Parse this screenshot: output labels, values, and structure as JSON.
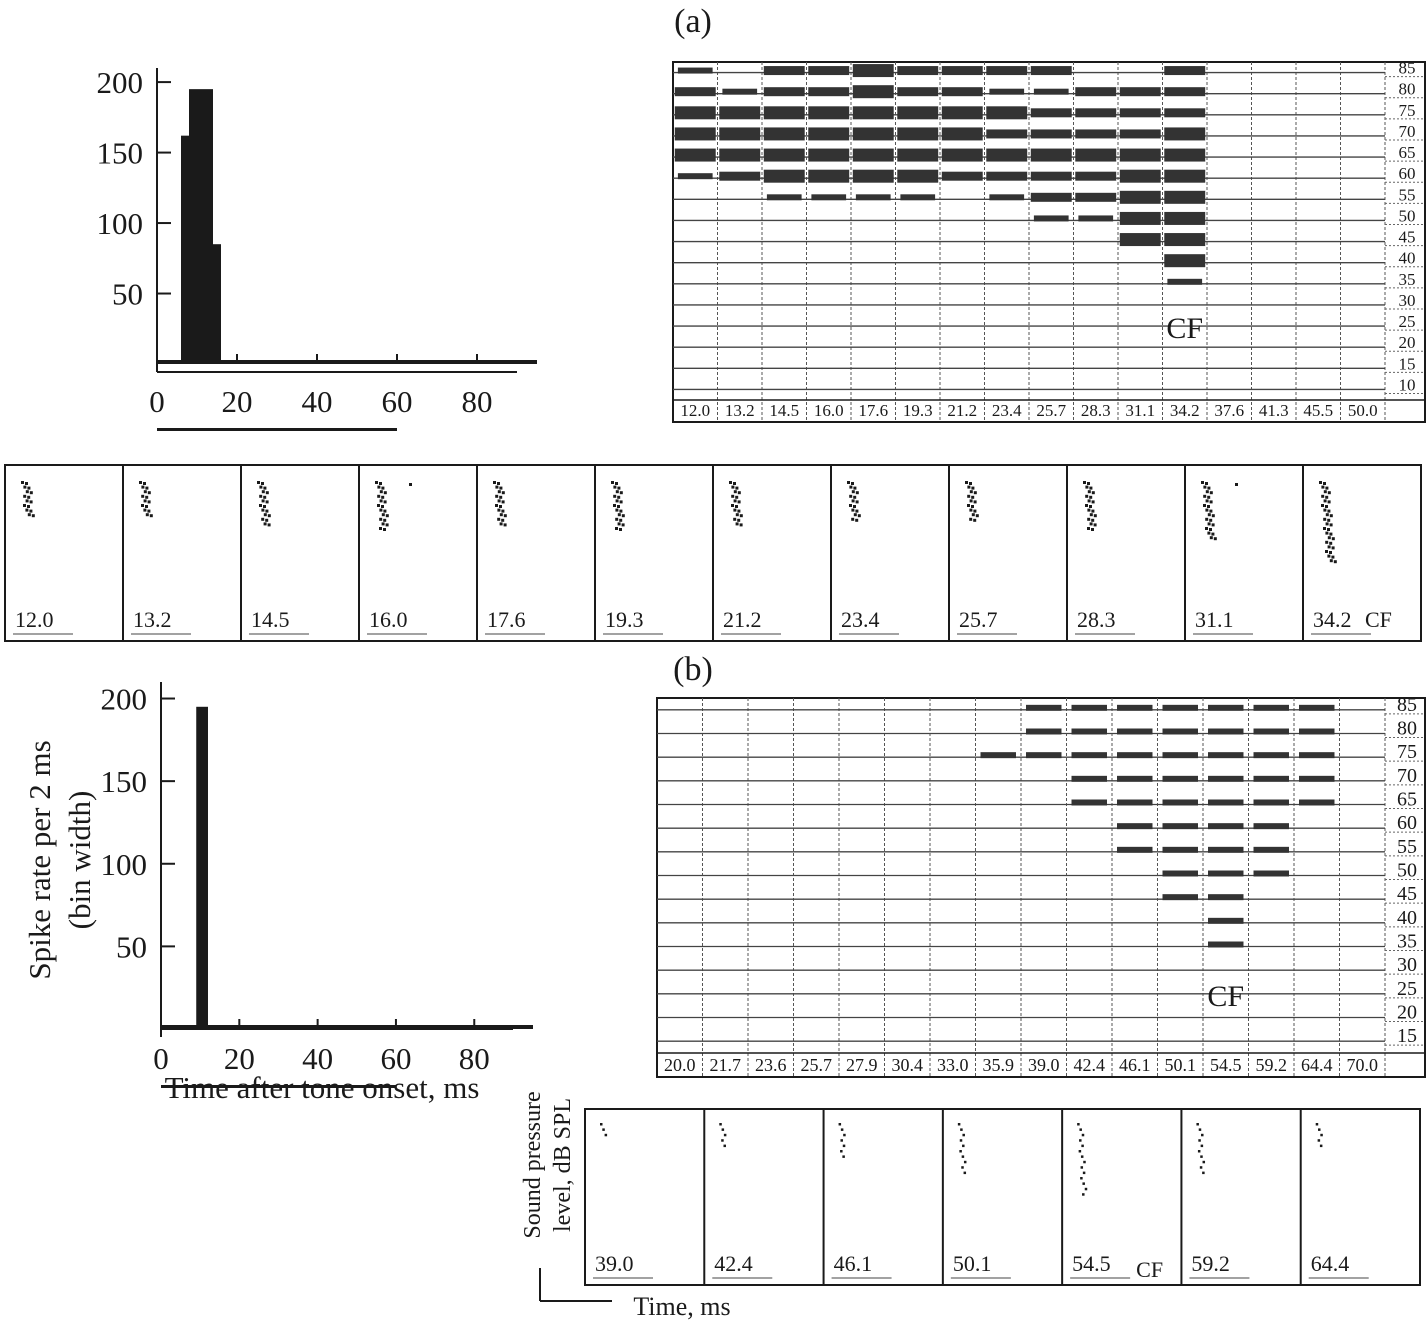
{
  "panels": {
    "a": {
      "label": "(a)"
    },
    "b": {
      "label": "(b)"
    }
  },
  "chart_data": [
    {
      "id": "psth-a",
      "type": "bar",
      "bin_width_ms": 2,
      "xlim": [
        0,
        95
      ],
      "xticks": [
        "0",
        "20",
        "40",
        "60",
        "80"
      ],
      "ylim": [
        0,
        210
      ],
      "yticks": [
        "50",
        "100",
        "150",
        "200"
      ],
      "bars": [
        {
          "x0": 6,
          "x1": 8,
          "value": 162
        },
        {
          "x0": 8,
          "x1": 10,
          "value": 195
        },
        {
          "x0": 10,
          "x1": 12,
          "value": 195
        },
        {
          "x0": 12,
          "x1": 14,
          "value": 195
        },
        {
          "x0": 14,
          "x1": 16,
          "value": 85
        }
      ],
      "stimulus_bar": [
        0,
        60
      ]
    },
    {
      "id": "psth-b",
      "type": "bar",
      "bin_width_ms": 2,
      "xlim": [
        0,
        95
      ],
      "xticks": [
        "0",
        "20",
        "40",
        "60",
        "80"
      ],
      "ylim": [
        0,
        210
      ],
      "yticks": [
        "50",
        "100",
        "150",
        "200"
      ],
      "ylabel_lines": [
        "Spike rate per 2 ms",
        "(bin width)"
      ],
      "xlabel": "Time after tone onset, ms",
      "bars": [
        {
          "x0": 9,
          "x1": 12,
          "value": 195
        }
      ],
      "stimulus_bar": [
        0,
        60
      ]
    },
    {
      "id": "fra-a",
      "type": "heatmap",
      "frequencies": [
        "12.0",
        "13.2",
        "14.5",
        "16.0",
        "17.6",
        "19.3",
        "21.2",
        "23.4",
        "25.7",
        "28.3",
        "31.1",
        "34.2",
        "37.6",
        "41.3",
        "45.5",
        "50.0"
      ],
      "levels": [
        "85",
        "80",
        "75",
        "70",
        "65",
        "60",
        "55",
        "50",
        "45",
        "40",
        "35",
        "30",
        "25",
        "20",
        "15",
        "10"
      ],
      "cf_label": "CF",
      "cf_column": 11,
      "responses": [
        [
          1,
          0,
          2,
          2,
          3,
          2,
          2,
          2,
          2,
          0,
          0,
          2,
          0,
          0,
          0,
          0
        ],
        [
          2,
          1,
          2,
          2,
          3,
          2,
          2,
          1,
          1,
          2,
          2,
          2,
          0,
          0,
          0,
          0
        ],
        [
          3,
          3,
          3,
          3,
          3,
          3,
          3,
          3,
          2,
          2,
          2,
          2,
          0,
          0,
          0,
          0
        ],
        [
          3,
          3,
          3,
          3,
          3,
          3,
          3,
          2,
          2,
          2,
          2,
          3,
          0,
          0,
          0,
          0
        ],
        [
          3,
          3,
          3,
          3,
          3,
          3,
          3,
          3,
          3,
          3,
          3,
          3,
          0,
          0,
          0,
          0
        ],
        [
          1,
          2,
          3,
          3,
          3,
          3,
          2,
          2,
          2,
          2,
          3,
          3,
          0,
          0,
          0,
          0
        ],
        [
          0,
          0,
          1,
          1,
          1,
          1,
          0,
          1,
          2,
          2,
          3,
          3,
          0,
          0,
          0,
          0
        ],
        [
          0,
          0,
          0,
          0,
          0,
          0,
          0,
          0,
          1,
          1,
          3,
          3,
          0,
          0,
          0,
          0
        ],
        [
          0,
          0,
          0,
          0,
          0,
          0,
          0,
          0,
          0,
          0,
          3,
          3,
          0,
          0,
          0,
          0
        ],
        [
          0,
          0,
          0,
          0,
          0,
          0,
          0,
          0,
          0,
          0,
          0,
          3,
          0,
          0,
          0,
          0
        ],
        [
          0,
          0,
          0,
          0,
          0,
          0,
          0,
          0,
          0,
          0,
          0,
          1,
          0,
          0,
          0,
          0
        ],
        [
          0,
          0,
          0,
          0,
          0,
          0,
          0,
          0,
          0,
          0,
          0,
          0,
          0,
          0,
          0,
          0
        ],
        [
          0,
          0,
          0,
          0,
          0,
          0,
          0,
          0,
          0,
          0,
          0,
          0,
          0,
          0,
          0,
          0
        ],
        [
          0,
          0,
          0,
          0,
          0,
          0,
          0,
          0,
          0,
          0,
          0,
          0,
          0,
          0,
          0,
          0
        ],
        [
          0,
          0,
          0,
          0,
          0,
          0,
          0,
          0,
          0,
          0,
          0,
          0,
          0,
          0,
          0,
          0
        ],
        [
          0,
          0,
          0,
          0,
          0,
          0,
          0,
          0,
          0,
          0,
          0,
          0,
          0,
          0,
          0,
          0
        ]
      ]
    },
    {
      "id": "fra-b",
      "type": "heatmap",
      "frequencies": [
        "20.0",
        "21.7",
        "23.6",
        "25.7",
        "27.9",
        "30.4",
        "33.0",
        "35.9",
        "39.0",
        "42.4",
        "46.1",
        "50.1",
        "54.5",
        "59.2",
        "64.4",
        "70.0"
      ],
      "levels": [
        "85",
        "80",
        "75",
        "70",
        "65",
        "60",
        "55",
        "50",
        "45",
        "40",
        "35",
        "30",
        "25",
        "20",
        "15"
      ],
      "cf_label": "CF",
      "cf_column": 12,
      "responses": [
        [
          0,
          0,
          0,
          0,
          0,
          0,
          0,
          0,
          1,
          1,
          1,
          1,
          1,
          1,
          1,
          0
        ],
        [
          0,
          0,
          0,
          0,
          0,
          0,
          0,
          0,
          1,
          1,
          1,
          1,
          1,
          1,
          1,
          0
        ],
        [
          0,
          0,
          0,
          0,
          0,
          0,
          0,
          1,
          1,
          1,
          1,
          1,
          1,
          1,
          1,
          0
        ],
        [
          0,
          0,
          0,
          0,
          0,
          0,
          0,
          0,
          0,
          1,
          1,
          1,
          1,
          1,
          1,
          0
        ],
        [
          0,
          0,
          0,
          0,
          0,
          0,
          0,
          0,
          0,
          1,
          1,
          1,
          1,
          1,
          1,
          0
        ],
        [
          0,
          0,
          0,
          0,
          0,
          0,
          0,
          0,
          0,
          0,
          1,
          1,
          1,
          1,
          0,
          0
        ],
        [
          0,
          0,
          0,
          0,
          0,
          0,
          0,
          0,
          0,
          0,
          1,
          1,
          1,
          1,
          0,
          0
        ],
        [
          0,
          0,
          0,
          0,
          0,
          0,
          0,
          0,
          0,
          0,
          0,
          1,
          1,
          1,
          0,
          0
        ],
        [
          0,
          0,
          0,
          0,
          0,
          0,
          0,
          0,
          0,
          0,
          0,
          1,
          1,
          0,
          0,
          0
        ],
        [
          0,
          0,
          0,
          0,
          0,
          0,
          0,
          0,
          0,
          0,
          0,
          0,
          1,
          0,
          0,
          0
        ],
        [
          0,
          0,
          0,
          0,
          0,
          0,
          0,
          0,
          0,
          0,
          0,
          0,
          1,
          0,
          0,
          0
        ],
        [
          0,
          0,
          0,
          0,
          0,
          0,
          0,
          0,
          0,
          0,
          0,
          0,
          0,
          0,
          0,
          0
        ],
        [
          0,
          0,
          0,
          0,
          0,
          0,
          0,
          0,
          0,
          0,
          0,
          0,
          0,
          0,
          0,
          0
        ],
        [
          0,
          0,
          0,
          0,
          0,
          0,
          0,
          0,
          0,
          0,
          0,
          0,
          0,
          0,
          0,
          0
        ],
        [
          0,
          0,
          0,
          0,
          0,
          0,
          0,
          0,
          0,
          0,
          0,
          0,
          0,
          0,
          0,
          0
        ]
      ]
    },
    {
      "id": "rasters-a",
      "type": "scatter",
      "cf_label": "CF",
      "cf_index": 11,
      "boxes": [
        {
          "freq": "12.0",
          "dot_rows": 8
        },
        {
          "freq": "13.2",
          "dot_rows": 8
        },
        {
          "freq": "14.5",
          "dot_rows": 10
        },
        {
          "freq": "16.0",
          "dot_rows": 11,
          "extra_dot": true
        },
        {
          "freq": "17.6",
          "dot_rows": 10
        },
        {
          "freq": "19.3",
          "dot_rows": 11
        },
        {
          "freq": "21.2",
          "dot_rows": 10
        },
        {
          "freq": "23.4",
          "dot_rows": 9
        },
        {
          "freq": "25.7",
          "dot_rows": 9
        },
        {
          "freq": "28.3",
          "dot_rows": 11
        },
        {
          "freq": "31.1",
          "dot_rows": 13,
          "extra_dot": true
        },
        {
          "freq": "34.2",
          "dot_rows": 18
        }
      ]
    },
    {
      "id": "rasters-b",
      "type": "scatter",
      "cf_label": "CF",
      "cf_index": 4,
      "boxes": [
        {
          "freq": "39.0",
          "dot_rows": 3
        },
        {
          "freq": "42.4",
          "dot_rows": 5
        },
        {
          "freq": "46.1",
          "dot_rows": 7
        },
        {
          "freq": "50.1",
          "dot_rows": 10
        },
        {
          "freq": "54.5",
          "dot_rows": 14
        },
        {
          "freq": "59.2",
          "dot_rows": 10
        },
        {
          "freq": "64.4",
          "dot_rows": 5
        }
      ],
      "legend_y": [
        "Sound pressure",
        "level, dB SPL"
      ],
      "legend_x": "Time, ms"
    }
  ]
}
